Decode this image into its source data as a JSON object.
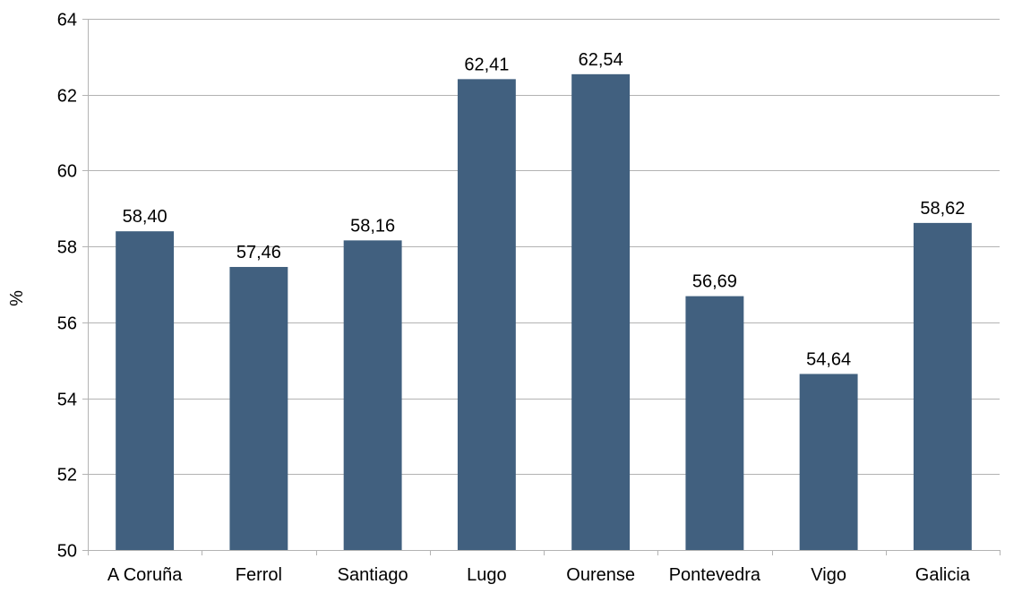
{
  "chart_data": {
    "type": "bar",
    "title": "",
    "xlabel": "",
    "ylabel": "%",
    "ylim": [
      50,
      64
    ],
    "yticks": [
      50,
      52,
      54,
      56,
      58,
      60,
      62,
      64
    ],
    "ytick_labels": [
      "50",
      "52",
      "54",
      "56",
      "58",
      "60",
      "62",
      "64"
    ],
    "grid": true,
    "legend": "none",
    "bar_color": "#41607f",
    "categories": [
      "A Coruña",
      "Ferrol",
      "Santiago",
      "Lugo",
      "Ourense",
      "Pontevedra",
      "Vigo",
      "Galicia"
    ],
    "values": [
      58.4,
      57.46,
      58.16,
      62.41,
      62.54,
      56.69,
      54.64,
      58.62
    ],
    "data_labels": [
      "58,40",
      "57,46",
      "58,16",
      "62,41",
      "62,54",
      "56,69",
      "54,64",
      "58,62"
    ]
  }
}
